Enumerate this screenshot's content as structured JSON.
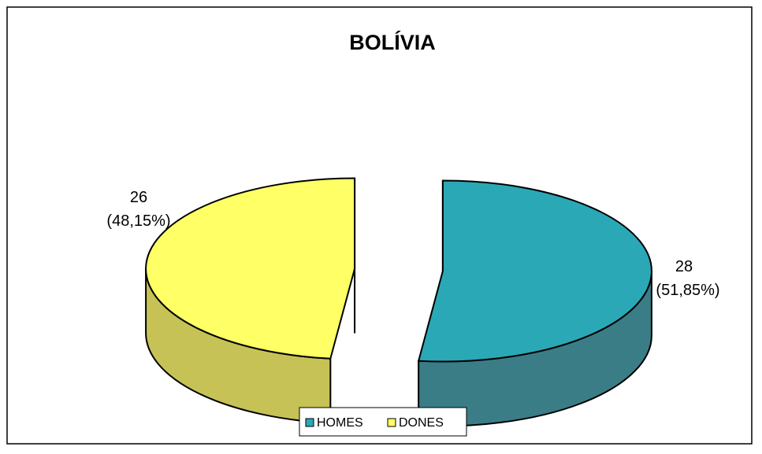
{
  "chart_data": {
    "type": "pie",
    "title": "BOLÍVIA",
    "categories": [
      "HOMES",
      "DONES"
    ],
    "values": [
      28,
      26
    ],
    "data_labels": [
      {
        "value": "28",
        "percent": "(51,85%)"
      },
      {
        "value": "26",
        "percent": "(48,15%)"
      }
    ],
    "colors": {
      "HOMES_top": "#2aa8b6",
      "HOMES_side": "#3a7d86",
      "DONES_top": "#ffff66",
      "DONES_side": "#c6c256"
    },
    "legend": {
      "position": "bottom",
      "items": [
        "HOMES",
        "DONES"
      ]
    },
    "three_d": true,
    "exploded": true
  }
}
